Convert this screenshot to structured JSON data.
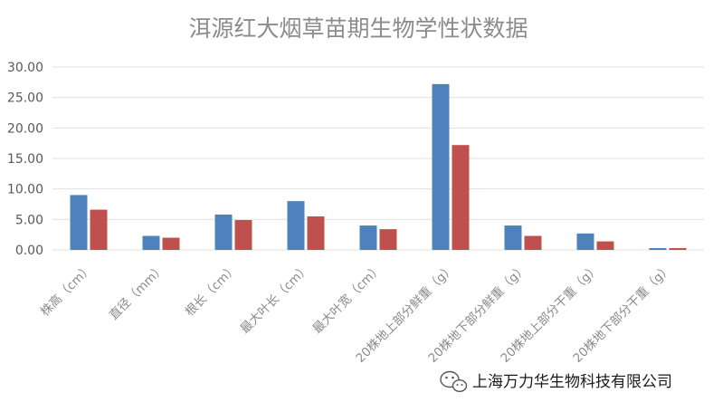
{
  "chart_data": {
    "type": "bar",
    "title": "洱源红大烟草苗期生物学性状数据",
    "xlabel": "",
    "ylabel": "",
    "ylim": [
      0,
      30
    ],
    "yticks": [
      "0.00",
      "5.00",
      "10.00",
      "15.00",
      "20.00",
      "25.00",
      "30.00"
    ],
    "grid": true,
    "legend": "none",
    "categories": [
      "株高（cm）",
      "直径（mm）",
      "根长（cm）",
      "最大叶长（cm）",
      "最大叶宽（cm）",
      "20株地上部分鲜重（g）",
      "20株地下部分鲜重（g）",
      "20株地上部分干重（g）",
      "20株地下部分干重（g）"
    ],
    "series": [
      {
        "color": "#4f81bd",
        "values": [
          9.0,
          2.3,
          5.8,
          8.0,
          4.0,
          27.2,
          4.0,
          2.7,
          0.3
        ]
      },
      {
        "color": "#c0504d",
        "values": [
          6.6,
          2.0,
          4.9,
          5.5,
          3.4,
          17.2,
          2.3,
          1.4,
          0.3
        ]
      }
    ]
  },
  "watermark": {
    "icon": "wechat-icon",
    "text": "上海万力华生物科技有限公司"
  }
}
